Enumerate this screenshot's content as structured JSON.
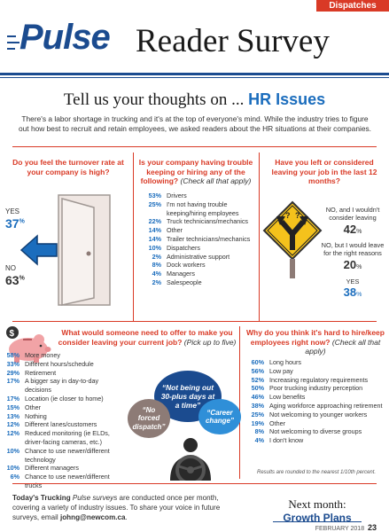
{
  "section_tag": "Dispatches",
  "masthead": {
    "pulse": "Pulse",
    "title": "Reader Survey"
  },
  "headline": {
    "lead": "Tell us your thoughts on ...",
    "topic": "HR Issues"
  },
  "intro": "There's a labor shortage in trucking and it's at the top of everyone's mind. While the industry tries to figure out how best to recruit and retain employees, we asked readers about the HR situations at their companies.",
  "q1": {
    "title": "Do you feel the turnover rate at your company is high?",
    "yes_label": "YES",
    "yes_value": "37",
    "no_label": "NO",
    "no_value": "63",
    "unit": "%"
  },
  "q2": {
    "title": "Is your company having trouble keeping or hiring any of the following?",
    "note": "(Check all that apply)",
    "items": [
      {
        "pct": "53%",
        "label": "Drivers"
      },
      {
        "pct": "25%",
        "label": "I'm not having trouble keeping/hiring employees"
      },
      {
        "pct": "22%",
        "label": "Truck technicians/mechanics"
      },
      {
        "pct": "14%",
        "label": "Other"
      },
      {
        "pct": "14%",
        "label": "Trailer technicians/mechanics"
      },
      {
        "pct": "10%",
        "label": "Dispatchers"
      },
      {
        "pct": "2%",
        "label": "Administrative support"
      },
      {
        "pct": "8%",
        "label": "Dock workers"
      },
      {
        "pct": "4%",
        "label": "Managers"
      },
      {
        "pct": "2%",
        "label": "Salespeople"
      }
    ]
  },
  "q3": {
    "title": "Have you left or considered leaving your job in the last 12 months?",
    "options": [
      {
        "label": "NO, and I wouldn't consider leaving",
        "value": "42",
        "unit": "%"
      },
      {
        "label": "NO, but I would leave for the right reasons",
        "value": "20",
        "unit": "%"
      },
      {
        "label": "YES",
        "value": "38",
        "unit": "%"
      }
    ]
  },
  "q4": {
    "title": "What would someone need to offer to make you consider leaving your current job?",
    "note": "(Pick up to five)",
    "items": [
      {
        "pct": "58%",
        "label": "More money"
      },
      {
        "pct": "33%",
        "label": "Different hours/schedule"
      },
      {
        "pct": "29%",
        "label": "Retirement"
      },
      {
        "pct": "17%",
        "label": "A bigger say in day-to-day decisions"
      },
      {
        "pct": "17%",
        "label": "Location (ie closer to home)"
      },
      {
        "pct": "15%",
        "label": "Other"
      },
      {
        "pct": "13%",
        "label": "Nothing"
      },
      {
        "pct": "12%",
        "label": "Different lanes/customers"
      },
      {
        "pct": "12%",
        "label": "Reduced monitoring (ie ELDs, driver-facing cameras, etc.)"
      },
      {
        "pct": "10%",
        "label": "Chance to use newer/different technology"
      },
      {
        "pct": "10%",
        "label": "Different managers"
      },
      {
        "pct": "6%",
        "label": "Chance to use newer/different trucks"
      }
    ],
    "bubbles": {
      "main": "“Not being out 30-plus days at a time”",
      "left": "“No forced dispatch”",
      "right": "“Career change”"
    }
  },
  "q5": {
    "title": "Why do you think it's hard to hire/keep employees right now?",
    "note": "(Check all that apply)",
    "items": [
      {
        "pct": "60%",
        "label": "Long hours"
      },
      {
        "pct": "56%",
        "label": "Low pay"
      },
      {
        "pct": "52%",
        "label": "Increasing regulatory requirements"
      },
      {
        "pct": "50%",
        "label": "Poor trucking industry perception"
      },
      {
        "pct": "46%",
        "label": "Low benefits"
      },
      {
        "pct": "38%",
        "label": "Aging workforce approaching retirement"
      },
      {
        "pct": "25%",
        "label": "Not welcoming to younger workers"
      },
      {
        "pct": "19%",
        "label": "Other"
      },
      {
        "pct": "8%",
        "label": "Not welcoming to diverse groups"
      },
      {
        "pct": "4%",
        "label": "I don't know"
      }
    ],
    "footnote": "Results are rounded to the nearest 1/10th percent."
  },
  "footer": {
    "lead": "Today's Trucking",
    "lead_rest": " Pulse surveys",
    "text": " are conducted once per month, covering a variety of industry issues. To share your voice in future surveys, email ",
    "email": "johng@newcom.ca",
    "end": "."
  },
  "next": {
    "label": "Next month:",
    "topic": "Growth Plans"
  },
  "page": {
    "date": "FEBRUARY 2018",
    "number": "23"
  },
  "colors": {
    "accent": "#d93a26",
    "brand": "#1b4b8f",
    "value_blue": "#1b6dbd",
    "bubble_dark": "#1b4b8f",
    "bubble_gray": "#8d7b76",
    "bubble_light": "#2f8fd8",
    "sign": "#f4c21c"
  }
}
